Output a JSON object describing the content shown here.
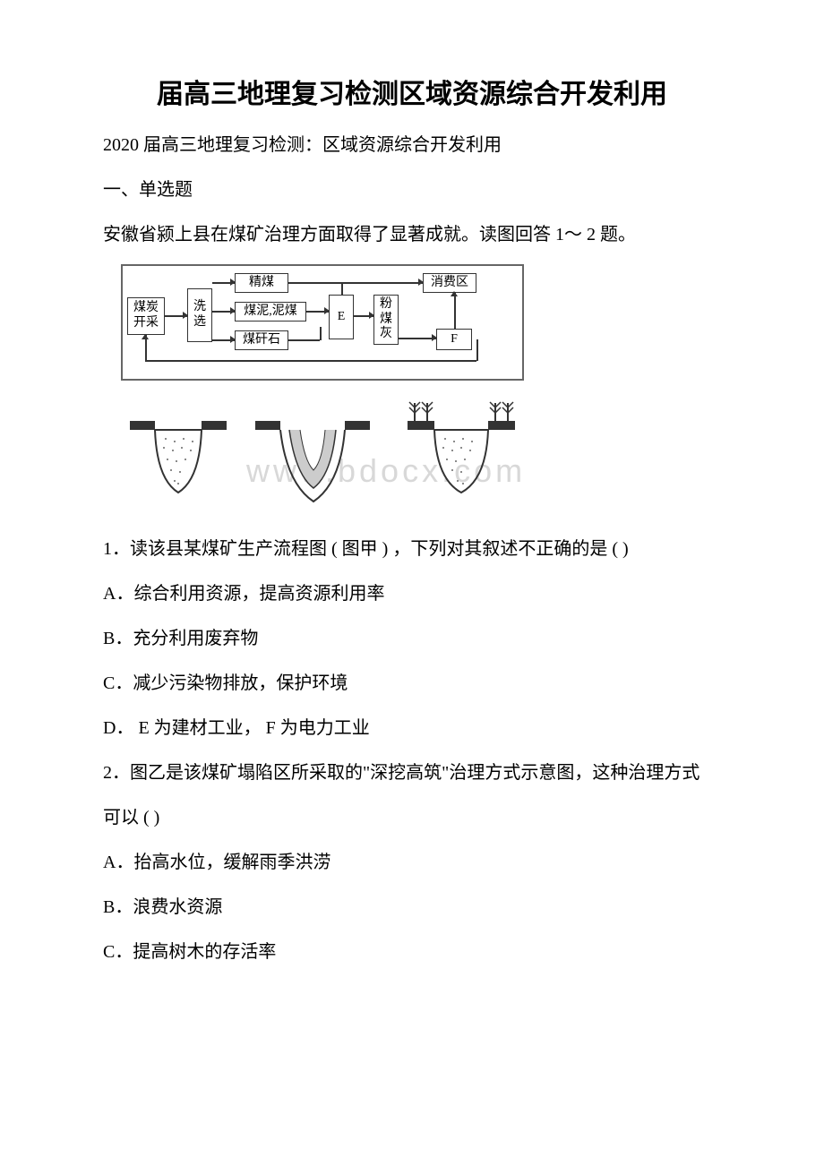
{
  "document": {
    "title": "届高三地理复习检测区域资源综合开发利用",
    "subtitle": "2020 届高三地理复习检测：区域资源综合开发利用",
    "section_header": "一、单选题",
    "intro_text": "安徽省颍上县在煤矿治理方面取得了显著成就。读图回答 1～ 2 题。",
    "flow_diagram": {
      "boxes": {
        "coal_mining": "煤炭\n开采",
        "washing": "洗\n选",
        "fine_coal": "精煤",
        "coal_mud": "煤泥,泥煤",
        "coal_gangue": "煤矸石",
        "e_box": "E",
        "fly_ash": "粉\n煤\n灰",
        "consumer": "消费区",
        "f_box": "F"
      }
    },
    "question1": {
      "text": "1．读该县某煤矿生产流程图 ( 图甲 ) ，下列对其叙述不正确的是 ( )",
      "options": {
        "a": "A．综合利用资源，提高资源利用率",
        "b": "B．充分利用废弃物",
        "c": "C．减少污染物排放，保护环境",
        "d": "D． E 为建材工业， F 为电力工业"
      }
    },
    "question2": {
      "text_line1": "2．图乙是该煤矿塌陷区所采取的\"深挖高筑\"治理方式示意图，这种治理方式",
      "text_line2": "可以 ( )",
      "options": {
        "a": "A．抬高水位，缓解雨季洪涝",
        "b": "B．浪费水资源",
        "c": "C．提高树木的存活率"
      }
    },
    "watermark": "www.bdocx.com",
    "colors": {
      "text": "#000000",
      "background": "#ffffff",
      "border": "#333333",
      "watermark": "#d8d8d8"
    },
    "fonts": {
      "title_size": 30,
      "body_size": 20,
      "diagram_size": 14
    }
  }
}
